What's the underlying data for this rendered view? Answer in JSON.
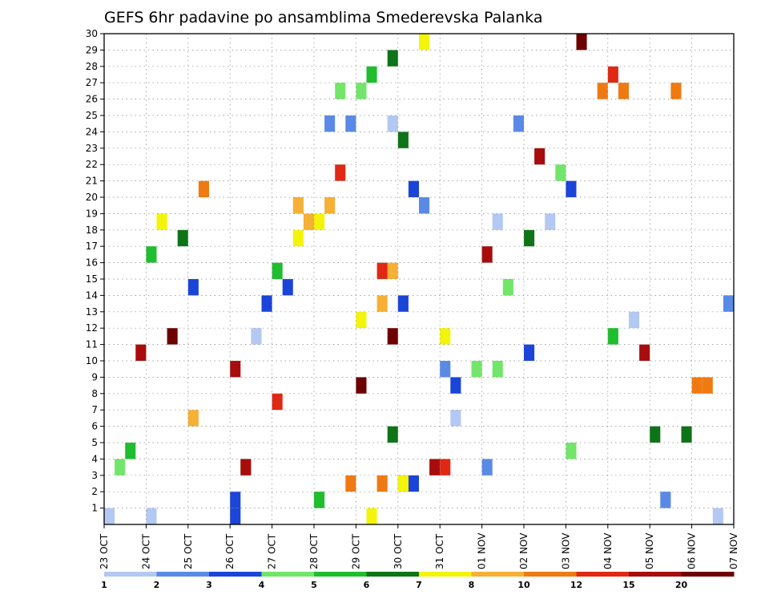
{
  "chart_data": {
    "type": "heatmap",
    "title": "GEFS 6hr padavine po ansamblima Smederevska Palanka",
    "xlabel": "",
    "ylabel": "",
    "x_tick_labels": [
      "23 OCT",
      "24 OCT",
      "25 OCT",
      "26 OCT",
      "27 OCT",
      "28 OCT",
      "29 OCT",
      "30 OCT",
      "31 OCT",
      "01 NOV",
      "02 NOV",
      "03 NOV",
      "04 NOV",
      "05 NOV",
      "06 NOV",
      "07 NOV"
    ],
    "y_tick_labels": [
      "1",
      "2",
      "3",
      "4",
      "5",
      "6",
      "7",
      "8",
      "9",
      "10",
      "11",
      "12",
      "13",
      "14",
      "15",
      "16",
      "17",
      "18",
      "19",
      "20",
      "21",
      "22",
      "23",
      "24",
      "25",
      "26",
      "27",
      "28",
      "29",
      "30"
    ],
    "xlim_steps": [
      0,
      60
    ],
    "ylim": [
      0,
      30
    ],
    "grid": true,
    "colorbar": {
      "placement": "bottom",
      "labels": [
        "1",
        "2",
        "3",
        "4",
        "5",
        "6",
        "7",
        "8",
        "10",
        "12",
        "15",
        "20"
      ],
      "colors": [
        "#b3c8f2",
        "#5a8ae6",
        "#1b44d8",
        "#72e66a",
        "#1ebe2e",
        "#0e7418",
        "#f4f40a",
        "#f5b035",
        "#f07a12",
        "#e02814",
        "#a80c0c",
        "#6e0000"
      ]
    },
    "cells": [
      [
        1,
        1,
        12
      ],
      [
        1,
        0,
        29
      ],
      [
        1,
        1,
        13
      ],
      [
        30,
        1,
        13
      ],
      [
        1,
        0,
        27
      ],
      [
        4,
        1,
        12
      ],
      [
        5,
        0,
        27
      ],
      [
        6,
        1,
        28
      ],
      [
        7,
        4,
        27
      ],
      [
        2,
        1,
        14
      ],
      [
        3,
        1,
        15
      ],
      [
        4,
        1,
        16
      ],
      [
        12,
        0,
        27
      ],
      [
        1,
        0,
        17
      ],
      [
        3,
        1,
        18
      ],
      [
        4,
        0,
        18
      ],
      [
        2,
        1,
        19
      ],
      [
        1,
        0,
        20
      ],
      [
        1,
        0,
        21
      ],
      [
        5,
        1,
        21
      ],
      [
        1,
        0,
        22
      ],
      [
        5,
        1,
        22
      ],
      [
        2,
        1,
        23
      ],
      [
        3,
        1,
        24
      ],
      [
        3,
        1,
        25
      ],
      [
        5,
        0,
        25
      ],
      [
        6,
        0,
        26
      ],
      [
        1,
        1,
        27
      ],
      [
        1,
        1,
        30
      ],
      [
        4,
        1,
        31
      ],
      [
        2,
        0,
        23
      ],
      [
        1,
        1,
        28
      ],
      [
        1,
        0,
        32
      ],
      [
        8,
        1,
        32
      ],
      [
        2,
        0,
        33
      ],
      [
        3,
        0,
        33
      ],
      [
        3,
        0,
        35
      ],
      [
        9,
        0,
        36
      ],
      [
        1,
        0,
        37
      ],
      [
        9,
        0,
        37
      ],
      [
        9,
        0,
        30
      ],
      [
        1,
        0,
        24
      ],
      [
        1,
        0,
        26
      ],
      [
        2,
        0,
        26
      ],
      [
        9,
        0,
        28
      ],
      [
        5,
        0,
        29
      ],
      [
        2,
        0,
        42
      ],
      [
        4,
        0,
        43
      ],
      [
        2,
        0,
        44
      ],
      [
        10,
        0,
        45
      ],
      [
        6,
        0,
        47
      ],
      [
        6,
        0,
        48
      ],
      [
        4,
        0,
        49
      ],
      [
        8,
        0,
        53
      ],
      [
        2,
        0,
        54
      ],
      [
        10,
        0,
        55
      ],
      [
        12,
        0,
        56
      ],
      [
        11,
        0,
        57
      ],
      [
        2,
        0,
        58
      ],
      [
        1,
        0,
        60
      ],
      [
        3,
        0,
        61
      ],
      [
        3,
        0,
        62
      ],
      [
        8,
        0,
        51
      ],
      [
        9,
        0,
        50
      ],
      [
        9,
        0,
        59
      ],
      [
        5,
        0,
        63
      ],
      [
        10,
        0,
        64
      ],
      [
        11,
        0,
        65
      ],
      [
        3,
        0,
        66
      ],
      [
        8,
        0,
        67
      ],
      [
        4,
        0,
        68
      ],
      [
        9,
        0,
        69
      ],
      [
        2,
        1,
        38
      ],
      [
        11,
        1,
        39
      ],
      [
        3,
        0,
        40
      ],
      [
        7,
        0,
        41
      ]
    ]
  }
}
